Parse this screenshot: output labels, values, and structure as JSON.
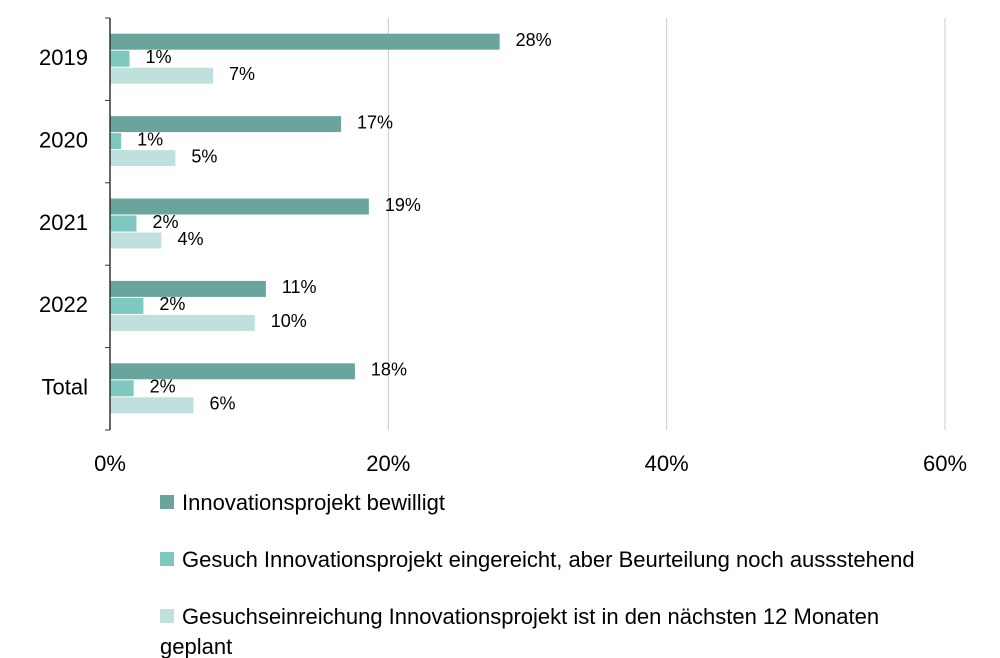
{
  "chart_data": {
    "type": "bar",
    "orientation": "horizontal",
    "categories": [
      "2019",
      "2020",
      "2021",
      "2022",
      "Total"
    ],
    "series": [
      {
        "name": "Innovationsprojekt bewilligt",
        "color": "#6aa59d",
        "values": [
          28.0,
          16.6,
          18.6,
          11.2,
          17.6
        ],
        "value_labels": [
          "28%",
          "17%",
          "19%",
          "11%",
          "18%"
        ]
      },
      {
        "name": "Gesuch Innovationsprojekt eingereicht, aber Beurteilung noch aussstehend",
        "color": "#7ec8c0",
        "values": [
          1.4,
          0.8,
          1.9,
          2.4,
          1.7
        ],
        "value_labels": [
          "1%",
          "1%",
          "2%",
          "2%",
          "2%"
        ]
      },
      {
        "name": "Gesuchseinreichung Innovationsprojekt ist in den nächsten 12 Monaten geplant",
        "color": "#bfe0dd",
        "values": [
          7.4,
          4.7,
          3.7,
          10.4,
          6.0
        ],
        "value_labels": [
          "7%",
          "5%",
          "4%",
          "10%",
          "6%"
        ]
      }
    ],
    "xlim": [
      0,
      60
    ],
    "xticks": [
      {
        "value": 0,
        "label": "0%"
      },
      {
        "value": 20,
        "label": "20%"
      },
      {
        "value": 40,
        "label": "40%"
      },
      {
        "value": 60,
        "label": "60%"
      }
    ],
    "grid": true
  }
}
